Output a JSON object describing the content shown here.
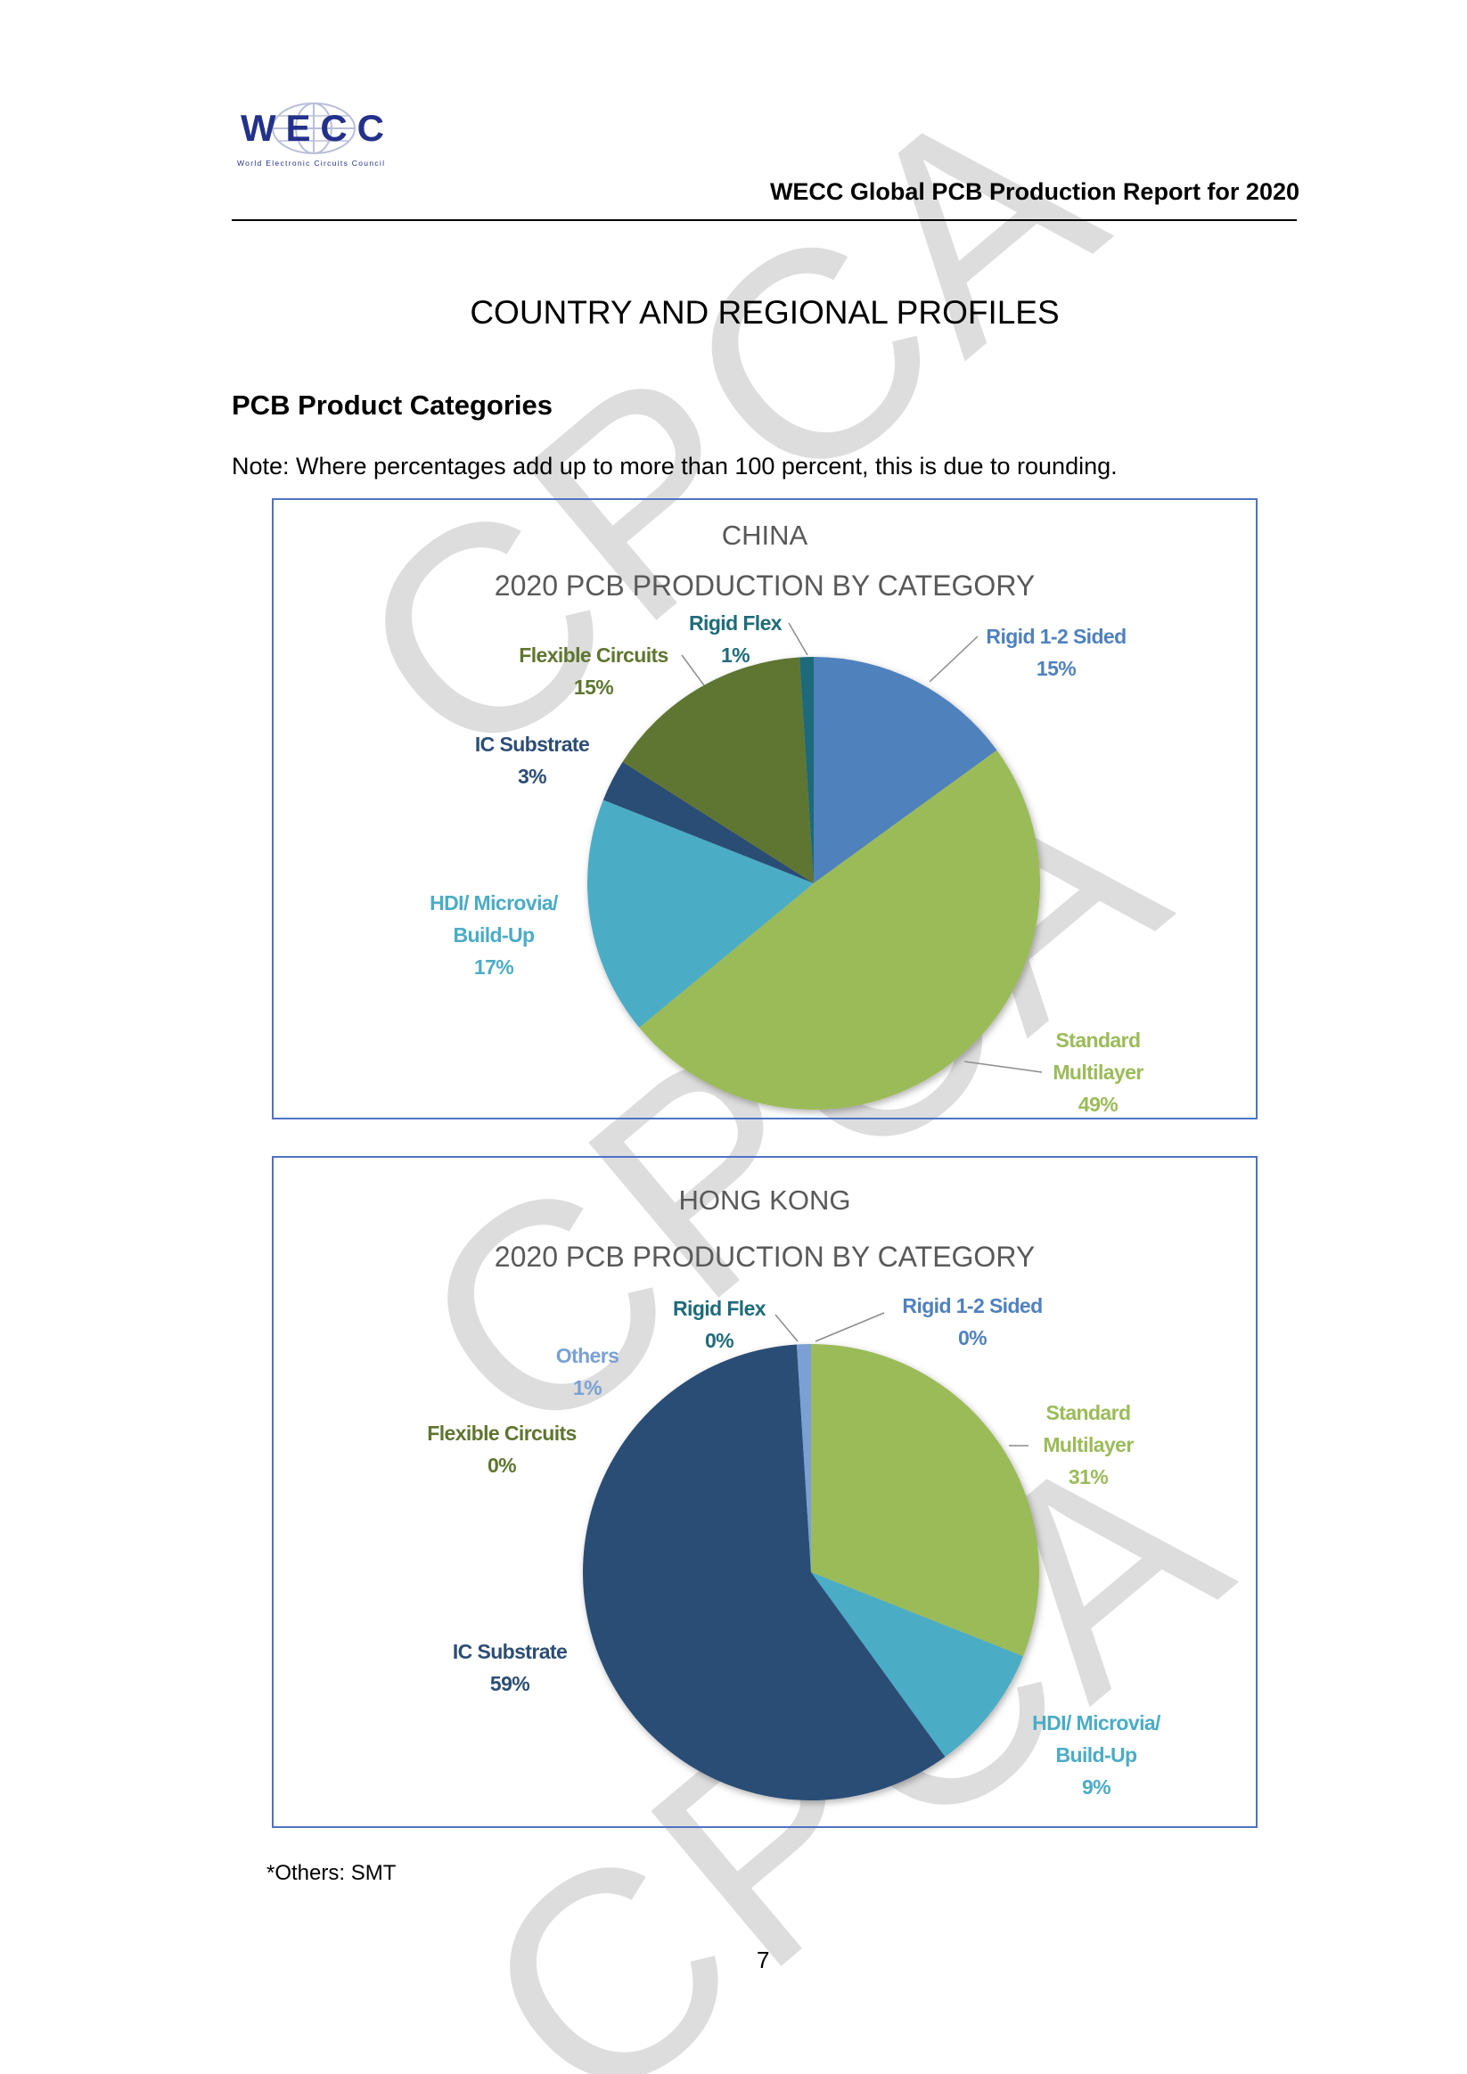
{
  "logo": {
    "text": "WECC",
    "subtext": "World Electronic Circuits Council",
    "color": "#23318a"
  },
  "header": {
    "report_title": "WECC Global PCB Production Report for 2020"
  },
  "section_title": "COUNTRY AND REGIONAL PROFILES",
  "subsection_title": "PCB Product Categories",
  "note": "Note: Where percentages add up to more than 100 percent, this is due to rounding.",
  "watermark": "CPCA",
  "chart_data": [
    {
      "type": "pie",
      "title": "CHINA",
      "subtitle": "2020 PCB PRODUCTION BY CATEGORY",
      "start": "12 o'clock, clockwise",
      "slices": [
        {
          "label": "Rigid 1-2 Sided",
          "value": 15,
          "display": "15%",
          "color": "#4f81bd"
        },
        {
          "label": "Standard Multilayer",
          "label_lines": [
            "Standard",
            "Multilayer"
          ],
          "value": 49,
          "display": "49%",
          "color": "#9bbb59"
        },
        {
          "label": "HDI/ Microvia/ Build-Up",
          "label_lines": [
            "HDI/ Microvia/",
            "Build-Up"
          ],
          "value": 17,
          "display": "17%",
          "color": "#4bacc6"
        },
        {
          "label": "IC Substrate",
          "value": 3,
          "display": "3%",
          "color": "#2c4d75"
        },
        {
          "label": "Flexible Circuits",
          "value": 15,
          "display": "15%",
          "color": "#5f7530"
        },
        {
          "label": "Rigid Flex",
          "value": 1,
          "display": "1%",
          "color": "#1f6b7a"
        }
      ]
    },
    {
      "type": "pie",
      "title": "HONG KONG",
      "subtitle": "2020 PCB PRODUCTION BY CATEGORY",
      "start": "12 o'clock, clockwise",
      "slices": [
        {
          "label": "Rigid 1-2 Sided",
          "value": 0,
          "display": "0%",
          "color": "#4f81bd"
        },
        {
          "label": "Standard Multilayer",
          "label_lines": [
            "Standard",
            "Multilayer"
          ],
          "value": 31,
          "display": "31%",
          "color": "#9bbb59"
        },
        {
          "label": "HDI/ Microvia/ Build-Up",
          "label_lines": [
            "HDI/ Microvia/",
            "Build-Up"
          ],
          "value": 9,
          "display": "9%",
          "color": "#4bacc6"
        },
        {
          "label": "IC Substrate",
          "value": 59,
          "display": "59%",
          "color": "#2c4d75"
        },
        {
          "label": "Flexible Circuits",
          "value": 0,
          "display": "0%",
          "color": "#5f7530"
        },
        {
          "label": "Others",
          "value": 1,
          "display": "1%",
          "color": "#7ba0d4"
        },
        {
          "label": "Rigid Flex",
          "value": 0,
          "display": "0%",
          "color": "#1f6b7a"
        }
      ]
    }
  ],
  "footnote": "*Others: SMT",
  "page_number": "7"
}
